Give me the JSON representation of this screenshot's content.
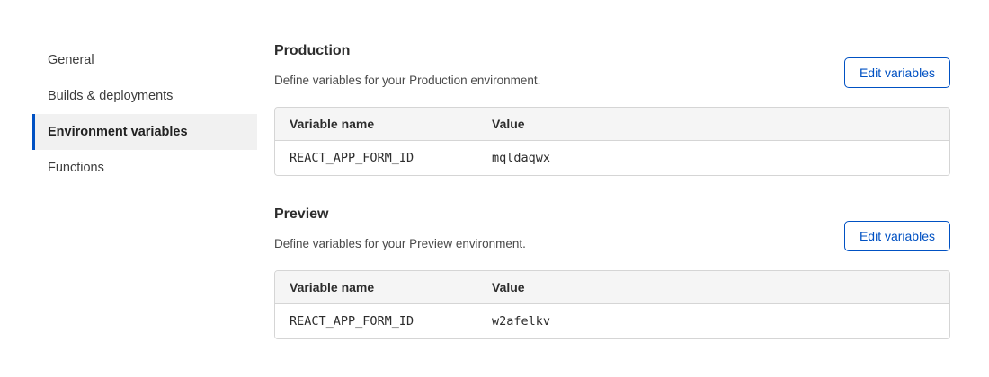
{
  "accent": {
    "blue": "#0051c3",
    "selected_bg": "#f1f1f1"
  },
  "sidebar": {
    "items": [
      {
        "label": "General",
        "selected": false
      },
      {
        "label": "Builds & deployments",
        "selected": false
      },
      {
        "label": "Environment variables",
        "selected": true
      },
      {
        "label": "Functions",
        "selected": false
      }
    ]
  },
  "sections": [
    {
      "title": "Production",
      "description": "Define variables for your Production environment.",
      "button_label": "Edit variables",
      "table": {
        "columns": [
          "Variable name",
          "Value"
        ],
        "rows": [
          [
            "REACT_APP_FORM_ID",
            "mqldaqwx"
          ]
        ]
      }
    },
    {
      "title": "Preview",
      "description": "Define variables for your Preview environment.",
      "button_label": "Edit variables",
      "table": {
        "columns": [
          "Variable name",
          "Value"
        ],
        "rows": [
          [
            "REACT_APP_FORM_ID",
            "w2afelkv"
          ]
        ]
      }
    }
  ]
}
